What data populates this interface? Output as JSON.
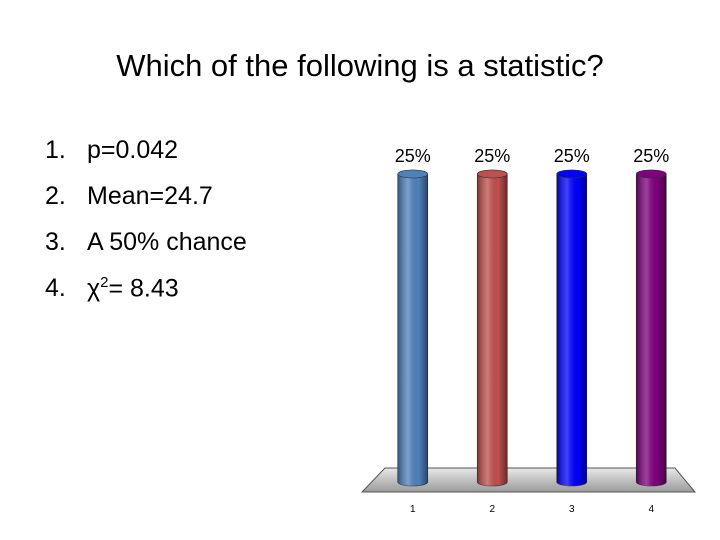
{
  "slide": {
    "title": "Which of the following is a statistic?",
    "list": [
      {
        "number": "1.",
        "text": "p=0.042"
      },
      {
        "number": "2.",
        "text": "Mean=24.7"
      },
      {
        "number": "3.",
        "text": "A 50% chance"
      },
      {
        "number": "4.",
        "text": "χ",
        "sup": "2",
        "text_after": "= 8.43"
      }
    ]
  },
  "chart_data": {
    "type": "bar3d",
    "categories": [
      "1",
      "2",
      "3",
      "4"
    ],
    "values": [
      25,
      25,
      25,
      25
    ],
    "value_labels": [
      "25%",
      "25%",
      "25%",
      "25%"
    ],
    "colors": [
      "#4f81bd",
      "#c0504d",
      "#0000ff",
      "#7f007f"
    ],
    "ylim": [
      0,
      25
    ]
  }
}
